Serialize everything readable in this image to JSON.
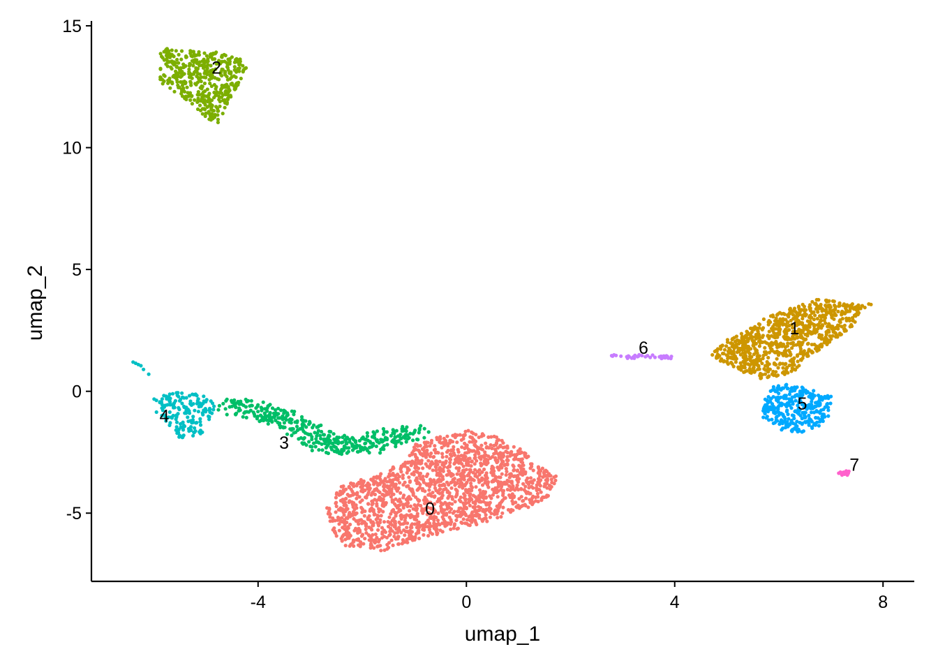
{
  "chart_data": {
    "type": "scatter",
    "title": "",
    "xlabel": "umap_1",
    "ylabel": "umap_2",
    "xlim": [
      -7.2,
      8.6
    ],
    "ylim": [
      -7.8,
      15.2
    ],
    "xticks": [
      -4,
      0,
      4,
      8
    ],
    "yticks": [
      -5,
      0,
      5,
      10,
      15
    ],
    "xtick_labels": [
      "-4",
      "0",
      "4",
      "8"
    ],
    "ytick_labels": [
      "-5",
      "0",
      "5",
      "10",
      "15"
    ],
    "grid": false,
    "legend": "none",
    "clusters": [
      {
        "label": "0",
        "color": "#F8766D",
        "label_pos": [
          -0.7,
          -4.8
        ],
        "shape": {
          "type": "polygon",
          "points": [
            [
              -2.7,
              -4.7
            ],
            [
              -2.4,
              -3.9
            ],
            [
              -1.7,
              -3.4
            ],
            [
              -1.2,
              -2.9
            ],
            [
              -1.0,
              -2.2
            ],
            [
              -0.6,
              -1.9
            ],
            [
              0.0,
              -1.6
            ],
            [
              0.6,
              -1.8
            ],
            [
              1.0,
              -2.3
            ],
            [
              1.4,
              -3.0
            ],
            [
              1.8,
              -3.6
            ],
            [
              1.7,
              -4.2
            ],
            [
              1.2,
              -4.8
            ],
            [
              0.5,
              -5.3
            ],
            [
              -0.2,
              -5.7
            ],
            [
              -1.0,
              -6.1
            ],
            [
              -1.6,
              -6.6
            ],
            [
              -2.4,
              -6.3
            ],
            [
              -2.6,
              -5.6
            ]
          ],
          "n": 1700
        }
      },
      {
        "label": "1",
        "color": "#CD9600",
        "label_pos": [
          6.3,
          2.6
        ],
        "shape": {
          "type": "polygon",
          "points": [
            [
              4.7,
              1.5
            ],
            [
              5.0,
              2.1
            ],
            [
              5.4,
              2.5
            ],
            [
              5.8,
              3.1
            ],
            [
              6.3,
              3.5
            ],
            [
              6.8,
              3.8
            ],
            [
              7.3,
              3.6
            ],
            [
              7.8,
              3.6
            ],
            [
              7.6,
              3.3
            ],
            [
              7.4,
              2.6
            ],
            [
              7.0,
              2.0
            ],
            [
              6.7,
              1.6
            ],
            [
              6.5,
              1.3
            ],
            [
              6.3,
              0.8
            ],
            [
              6.0,
              0.6
            ],
            [
              5.6,
              0.5
            ],
            [
              5.2,
              0.9
            ],
            [
              4.9,
              1.2
            ]
          ],
          "n": 850
        }
      },
      {
        "label": "2",
        "color": "#7CAE00",
        "label_pos": [
          -4.8,
          13.3
        ],
        "shape": {
          "type": "polygon",
          "points": [
            [
              -5.9,
              14.1
            ],
            [
              -5.3,
              14.0
            ],
            [
              -4.7,
              13.9
            ],
            [
              -4.3,
              13.6
            ],
            [
              -4.2,
              13.2
            ],
            [
              -4.4,
              12.5
            ],
            [
              -4.6,
              11.7
            ],
            [
              -4.8,
              10.9
            ],
            [
              -5.3,
              11.8
            ],
            [
              -5.9,
              12.7
            ],
            [
              -5.9,
              13.5
            ]
          ],
          "n": 450
        }
      },
      {
        "label": "3",
        "color": "#00BE67",
        "label_pos": [
          -3.5,
          -2.1
        ],
        "shape": {
          "type": "polyline",
          "points": [
            [
              -4.5,
              -0.6
            ],
            [
              -3.8,
              -0.9
            ],
            [
              -3.3,
              -1.3
            ],
            [
              -2.9,
              -1.9
            ],
            [
              -2.5,
              -2.2
            ],
            [
              -2.0,
              -2.3
            ],
            [
              -1.5,
              -1.9
            ],
            [
              -1.0,
              -1.7
            ]
          ],
          "spread": 0.35,
          "n": 420
        }
      },
      {
        "label": "4",
        "color": "#00BFC4",
        "label_pos": [
          -5.8,
          -1.0
        ],
        "shape": {
          "type": "polygon",
          "points": [
            [
              -6.0,
              -0.3
            ],
            [
              -5.6,
              0.0
            ],
            [
              -5.1,
              -0.1
            ],
            [
              -4.8,
              -0.5
            ],
            [
              -4.9,
              -1.2
            ],
            [
              -5.1,
              -1.8
            ],
            [
              -5.5,
              -2.0
            ],
            [
              -5.7,
              -1.4
            ],
            [
              -6.0,
              -0.8
            ]
          ],
          "n": 170,
          "extra": [
            [
              -6.4,
              1.2
            ],
            [
              -6.35,
              1.15
            ],
            [
              -6.3,
              1.1
            ],
            [
              -6.25,
              1.05
            ],
            [
              -6.2,
              0.9
            ],
            [
              -6.1,
              0.7
            ]
          ]
        }
      },
      {
        "label": "5",
        "color": "#00A9FF",
        "label_pos": [
          6.45,
          -0.5
        ],
        "shape": {
          "type": "polygon",
          "points": [
            [
              5.7,
              -0.4
            ],
            [
              5.9,
              0.2
            ],
            [
              6.2,
              0.3
            ],
            [
              6.6,
              0.1
            ],
            [
              7.0,
              -0.2
            ],
            [
              7.0,
              -0.9
            ],
            [
              6.8,
              -1.4
            ],
            [
              6.4,
              -1.7
            ],
            [
              6.0,
              -1.6
            ],
            [
              5.7,
              -1.1
            ]
          ],
          "n": 320
        }
      },
      {
        "label": "6",
        "color": "#C77CFF",
        "label_pos": [
          3.4,
          1.8
        ],
        "shape": {
          "type": "polyline",
          "points": [
            [
              2.8,
              1.45
            ],
            [
              3.1,
              1.4
            ],
            [
              3.4,
              1.45
            ],
            [
              3.7,
              1.4
            ],
            [
              3.9,
              1.4
            ]
          ],
          "spread": 0.06,
          "n": 40
        }
      },
      {
        "label": "7",
        "color": "#FF61CC",
        "label_pos": [
          7.45,
          -3.0
        ],
        "shape": {
          "type": "polygon",
          "points": [
            [
              7.15,
              -3.25
            ],
            [
              7.35,
              -3.25
            ],
            [
              7.35,
              -3.45
            ],
            [
              7.15,
              -3.45
            ]
          ],
          "n": 14
        }
      }
    ]
  }
}
